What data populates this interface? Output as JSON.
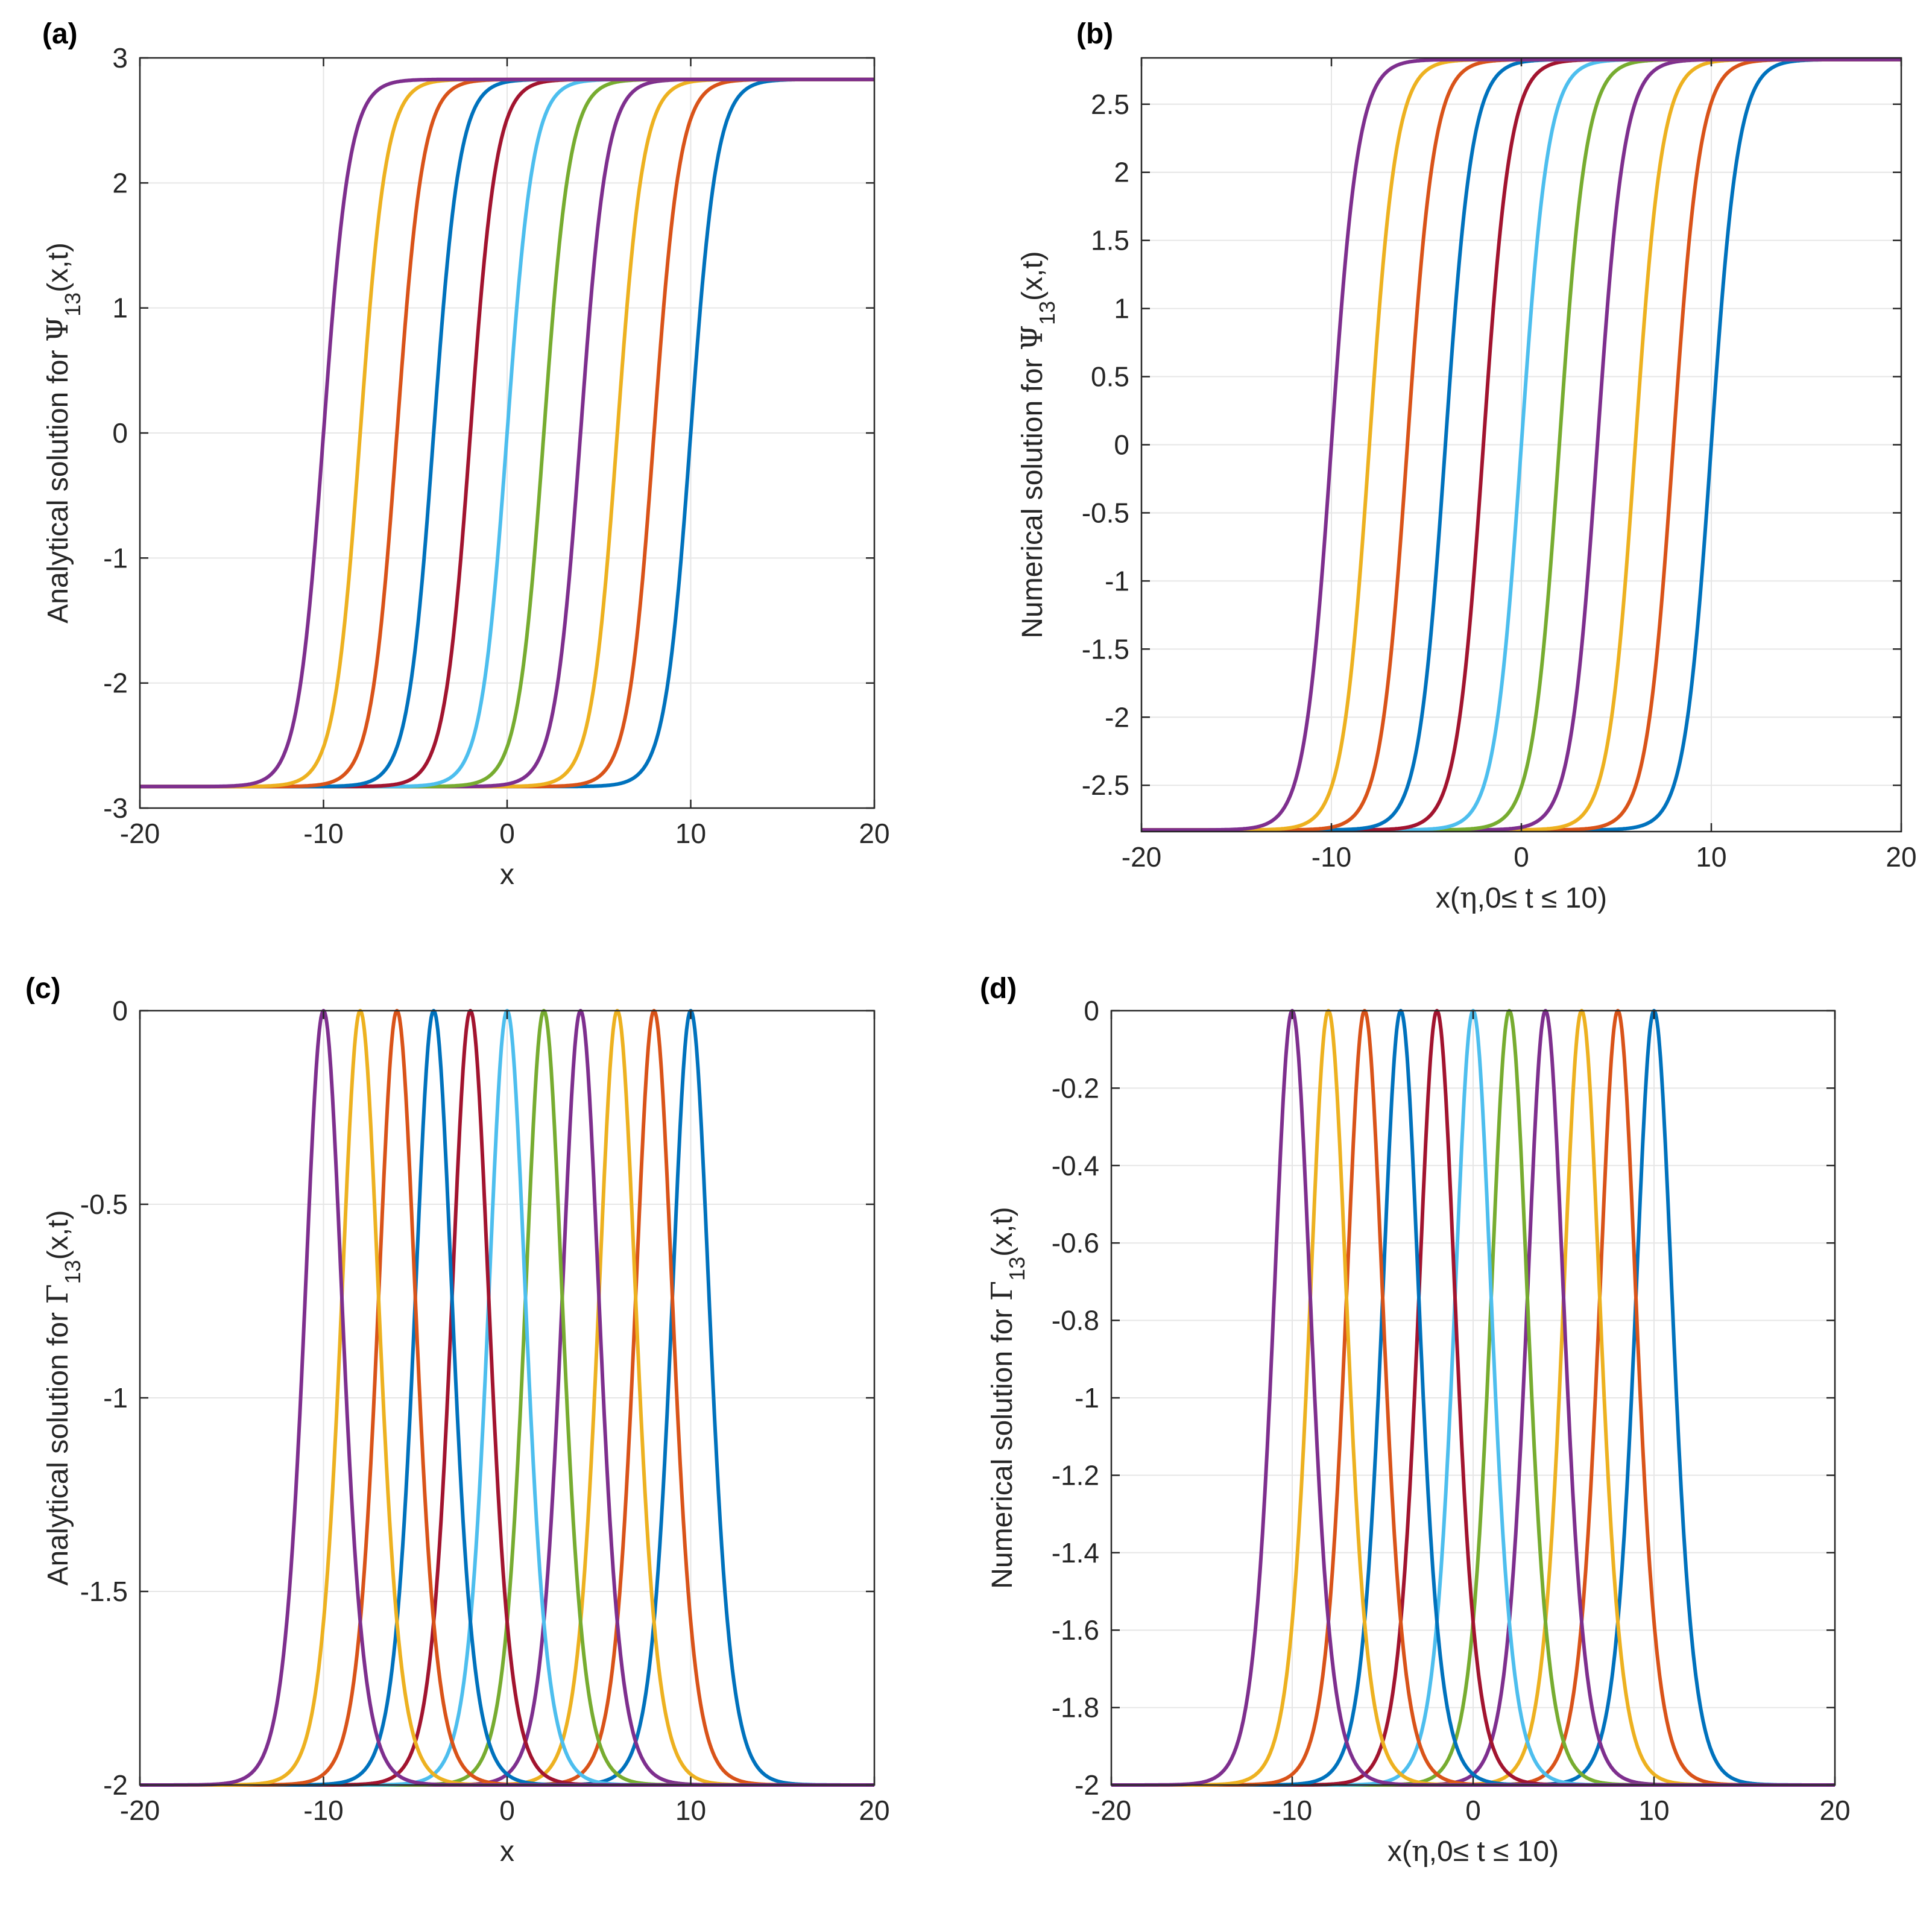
{
  "figure": {
    "panel_a": {
      "letter": "(a)"
    },
    "panel_b": {
      "letter": "(b)"
    },
    "panel_c": {
      "letter": "(c)"
    },
    "panel_d": {
      "letter": "(d)"
    }
  },
  "palette": [
    "#7E2F8E",
    "#EDB120",
    "#D95319",
    "#0072BD",
    "#A2142F",
    "#4DBEEE",
    "#77AC30",
    "#7E2F8E",
    "#EDB120",
    "#D95319",
    "#0072BD"
  ],
  "chart_data": [
    {
      "id": "a",
      "type": "line",
      "xlabel": "x",
      "ylabel": {
        "pre": "Analytical solution for ",
        "sym": "Ψ",
        "sub": "13",
        "post": "(x,t)"
      },
      "xlim": [
        -20,
        20
      ],
      "ylim": [
        -3,
        3
      ],
      "xticks": [
        -20,
        -10,
        0,
        10,
        20
      ],
      "yticks": [
        -3,
        -2,
        -1,
        0,
        1,
        2,
        3
      ],
      "xtick_labels": [
        "-20",
        "-10",
        "0",
        "10",
        "20"
      ],
      "ytick_labels": [
        "-3",
        "-2",
        "-1",
        "0",
        "1",
        "2",
        "3"
      ],
      "grid": true,
      "curve": "kink",
      "amplitude": 2.828,
      "centers": [
        -10,
        -8,
        -6,
        -4,
        -2,
        0,
        2,
        4,
        6,
        8,
        10
      ]
    },
    {
      "id": "b",
      "type": "line",
      "xlabel": {
        "pre": "x(",
        "sym": "η",
        "post": ",0≤ t ≤ 10)"
      },
      "ylabel": {
        "pre": "Numerical solution for ",
        "sym": "Ψ",
        "sub": "13",
        "post": "(x,t)"
      },
      "xlim": [
        -20,
        20
      ],
      "ylim": [
        -2.84,
        2.84
      ],
      "xticks": [
        -20,
        -10,
        0,
        10,
        20
      ],
      "yticks": [
        -2.5,
        -2,
        -1.5,
        -1,
        -0.5,
        0,
        0.5,
        1,
        1.5,
        2,
        2.5
      ],
      "xtick_labels": [
        "-20",
        "-10",
        "0",
        "10",
        "20"
      ],
      "ytick_labels": [
        "-2.5",
        "-2",
        "-1.5",
        "-1",
        "-0.5",
        "0",
        "0.5",
        "1",
        "1.5",
        "2",
        "2.5"
      ],
      "grid": true,
      "curve": "kink",
      "amplitude": 2.828,
      "centers": [
        -10,
        -8,
        -6,
        -4,
        -2,
        0,
        2,
        4,
        6,
        8,
        10
      ]
    },
    {
      "id": "c",
      "type": "line",
      "xlabel": "x",
      "ylabel": {
        "pre": "Analytical solution for ",
        "sym": "Γ",
        "sub": "13",
        "post": "(x,t)"
      },
      "xlim": [
        -20,
        20
      ],
      "ylim": [
        -2,
        0
      ],
      "xticks": [
        -20,
        -10,
        0,
        10,
        20
      ],
      "yticks": [
        -2,
        -1.5,
        -1,
        -0.5,
        0
      ],
      "xtick_labels": [
        "-20",
        "-10",
        "0",
        "10",
        "20"
      ],
      "ytick_labels": [
        "-2",
        "-1.5",
        "-1",
        "-0.5",
        "0"
      ],
      "grid": true,
      "curve": "bell",
      "baseline": -2,
      "peak": 0,
      "centers": [
        -10,
        -8,
        -6,
        -4,
        -2,
        0,
        2,
        4,
        6,
        8,
        10
      ]
    },
    {
      "id": "d",
      "type": "line",
      "xlabel": {
        "pre": "x(",
        "sym": "η",
        "post": ",0≤ t ≤ 10)"
      },
      "ylabel": {
        "pre": "Numerical solution for ",
        "sym": "Γ",
        "sub": "13",
        "post": "(x,t)"
      },
      "xlim": [
        -20,
        20
      ],
      "ylim": [
        -2,
        0
      ],
      "xticks": [
        -20,
        -10,
        0,
        10,
        20
      ],
      "yticks": [
        -2,
        -1.8,
        -1.6,
        -1.4,
        -1.2,
        -1,
        -0.8,
        -0.6,
        -0.4,
        -0.2,
        0
      ],
      "xtick_labels": [
        "-20",
        "-10",
        "0",
        "10",
        "20"
      ],
      "ytick_labels": [
        "-2",
        "-1.8",
        "-1.6",
        "-1.4",
        "-1.2",
        "-1",
        "-0.8",
        "-0.6",
        "-0.4",
        "-0.2",
        "0"
      ],
      "grid": true,
      "curve": "bell",
      "baseline": -2,
      "peak": 0,
      "centers": [
        -10,
        -8,
        -6,
        -4,
        -2,
        0,
        2,
        4,
        6,
        8,
        10
      ]
    }
  ]
}
